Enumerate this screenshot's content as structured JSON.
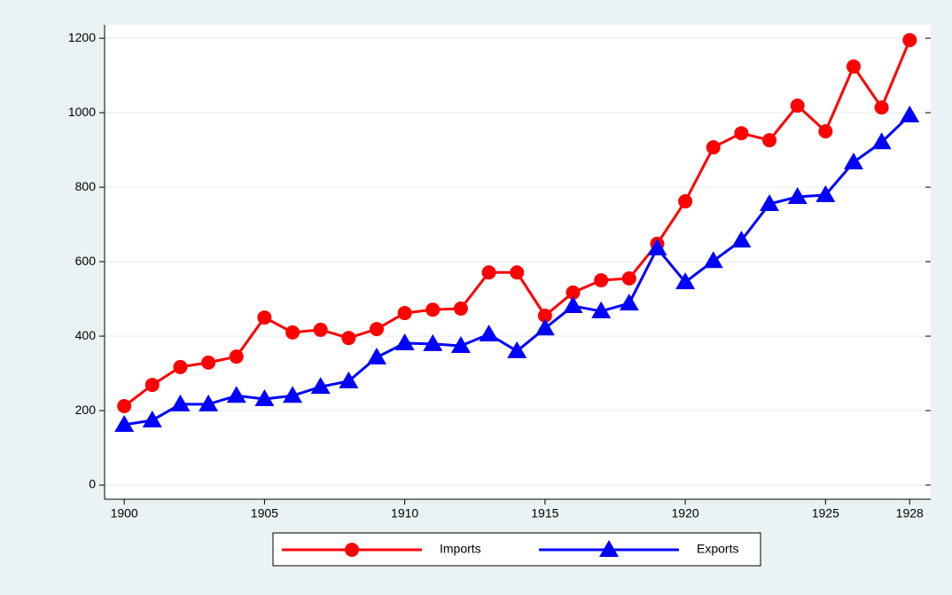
{
  "chart_data": {
    "type": "line",
    "x": [
      1900,
      1901,
      1902,
      1903,
      1904,
      1905,
      1906,
      1907,
      1908,
      1909,
      1910,
      1911,
      1912,
      1913,
      1914,
      1915,
      1916,
      1917,
      1918,
      1919,
      1920,
      1921,
      1922,
      1923,
      1924,
      1925,
      1926,
      1927,
      1928
    ],
    "series": [
      {
        "name": "Imports",
        "color": "#ff0000",
        "marker": "circle",
        "values": [
          212,
          269,
          317,
          329,
          345,
          450,
          410,
          417,
          395,
          419,
          462,
          471,
          474,
          571,
          571,
          455,
          517,
          550,
          555,
          648,
          762,
          907,
          945,
          926,
          1019,
          950,
          1124,
          1014,
          1195
        ]
      },
      {
        "name": "Exports",
        "color": "#0000ff",
        "marker": "triangle",
        "values": [
          162,
          174,
          217,
          217,
          240,
          231,
          240,
          264,
          279,
          343,
          381,
          379,
          374,
          405,
          360,
          421,
          481,
          467,
          488,
          636,
          545,
          602,
          657,
          755,
          774,
          779,
          867,
          921,
          993
        ]
      }
    ],
    "xlim": [
      1899.3,
      1928.75
    ],
    "xticks": [
      1900,
      1905,
      1910,
      1915,
      1920,
      1925,
      1928
    ],
    "ylim": [
      -38,
      1236
    ],
    "yticks": [
      0,
      200,
      400,
      600,
      800,
      1000,
      1200
    ],
    "grid": true,
    "legend": "bottom"
  }
}
